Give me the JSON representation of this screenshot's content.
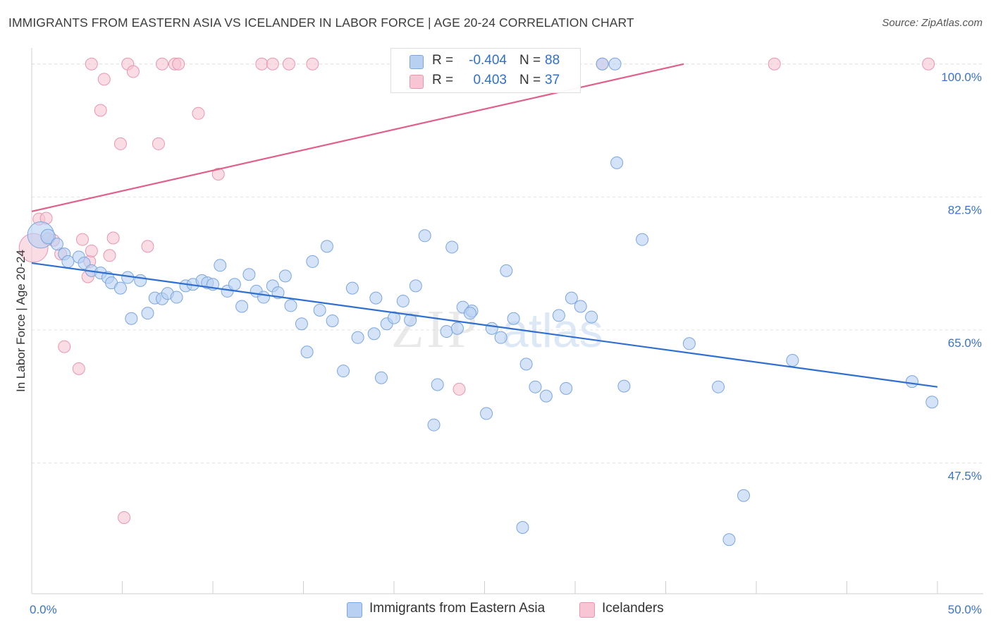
{
  "header": {
    "title": "IMMIGRANTS FROM EASTERN ASIA VS ICELANDER IN LABOR FORCE | AGE 20-24 CORRELATION CHART",
    "source_prefix": "Source: ",
    "source_site": "ZipAtlas.com"
  },
  "colors": {
    "blue_fill": "#b8d1f3",
    "blue_stroke": "#7aa6e0",
    "blue_line": "#2f6fcf",
    "pink_fill": "#f7c5d4",
    "pink_stroke": "#e896b0",
    "pink_line": "#e0608a",
    "grid": "#e2e2e2",
    "tick_label": "#3a74c9"
  },
  "legend": {
    "rows": [
      {
        "r_label": "R = ",
        "r_value": "-0.404",
        "n_label": "N = ",
        "n_value": "88"
      },
      {
        "r_label": "R = ",
        "r_value": "0.403",
        "n_label": "N = ",
        "n_value": "37"
      }
    ]
  },
  "bottom_legend": {
    "items": [
      "Immigrants from Eastern Asia",
      "Icelanders"
    ]
  },
  "watermark": {
    "zip": "ZIP",
    "atlas": "atlas"
  },
  "chart_data": {
    "type": "scatter",
    "title": "IMMIGRANTS FROM EASTERN ASIA VS ICELANDER IN LABOR FORCE | AGE 20-24 CORRELATION CHART",
    "xlabel": "",
    "ylabel": "In Labor Force | Age 20-24",
    "xlim": [
      0,
      50
    ],
    "ylim": [
      30,
      101
    ],
    "x_tick_labels": [
      "0.0%",
      "50.0%"
    ],
    "y_ticks": [
      47.5,
      65.0,
      82.5,
      100.0
    ],
    "y_tick_labels": [
      "47.5%",
      "65.0%",
      "82.5%",
      "100.0%"
    ],
    "grid": true,
    "legend_position": "top-center",
    "series": [
      {
        "name": "Immigrants from Eastern Asia",
        "r": -0.404,
        "n": 88,
        "trend": {
          "x": [
            0,
            50
          ],
          "y": [
            73.8,
            57.5
          ]
        },
        "points": [
          {
            "x": 0.5,
            "y": 77.5,
            "s": 2.2
          },
          {
            "x": 0.9,
            "y": 77.3,
            "s": 1.2
          },
          {
            "x": 1.4,
            "y": 76.3,
            "s": 1
          },
          {
            "x": 1.8,
            "y": 75.0,
            "s": 1
          },
          {
            "x": 2.0,
            "y": 74.0,
            "s": 1
          },
          {
            "x": 2.6,
            "y": 74.6,
            "s": 1
          },
          {
            "x": 2.9,
            "y": 73.8,
            "s": 1
          },
          {
            "x": 3.3,
            "y": 72.8,
            "s": 1
          },
          {
            "x": 3.8,
            "y": 72.5,
            "s": 1
          },
          {
            "x": 4.2,
            "y": 71.9,
            "s": 1
          },
          {
            "x": 4.4,
            "y": 71.2,
            "s": 1
          },
          {
            "x": 4.9,
            "y": 70.5,
            "s": 1
          },
          {
            "x": 5.3,
            "y": 71.9,
            "s": 1
          },
          {
            "x": 5.5,
            "y": 66.5,
            "s": 1
          },
          {
            "x": 6.0,
            "y": 71.5,
            "s": 1
          },
          {
            "x": 6.4,
            "y": 67.2,
            "s": 1
          },
          {
            "x": 6.8,
            "y": 69.2,
            "s": 1
          },
          {
            "x": 7.2,
            "y": 69.1,
            "s": 1
          },
          {
            "x": 7.5,
            "y": 69.8,
            "s": 1
          },
          {
            "x": 8.0,
            "y": 69.3,
            "s": 1
          },
          {
            "x": 8.5,
            "y": 70.8,
            "s": 1
          },
          {
            "x": 8.9,
            "y": 71.0,
            "s": 1
          },
          {
            "x": 9.4,
            "y": 71.5,
            "s": 1
          },
          {
            "x": 9.7,
            "y": 71.2,
            "s": 1
          },
          {
            "x": 10.0,
            "y": 71.0,
            "s": 1
          },
          {
            "x": 10.4,
            "y": 73.5,
            "s": 1
          },
          {
            "x": 10.8,
            "y": 70.1,
            "s": 1
          },
          {
            "x": 11.2,
            "y": 71.0,
            "s": 1
          },
          {
            "x": 11.6,
            "y": 68.1,
            "s": 1
          },
          {
            "x": 12.0,
            "y": 72.3,
            "s": 1
          },
          {
            "x": 12.4,
            "y": 70.1,
            "s": 1
          },
          {
            "x": 12.8,
            "y": 69.3,
            "s": 1
          },
          {
            "x": 13.3,
            "y": 70.8,
            "s": 1
          },
          {
            "x": 13.6,
            "y": 69.9,
            "s": 1
          },
          {
            "x": 14.0,
            "y": 72.1,
            "s": 1
          },
          {
            "x": 14.3,
            "y": 68.2,
            "s": 1
          },
          {
            "x": 14.9,
            "y": 65.8,
            "s": 1
          },
          {
            "x": 15.2,
            "y": 62.1,
            "s": 1
          },
          {
            "x": 15.5,
            "y": 74.0,
            "s": 1
          },
          {
            "x": 15.9,
            "y": 67.6,
            "s": 1
          },
          {
            "x": 16.3,
            "y": 76.0,
            "s": 1
          },
          {
            "x": 16.6,
            "y": 66.2,
            "s": 1
          },
          {
            "x": 17.2,
            "y": 59.6,
            "s": 1
          },
          {
            "x": 17.7,
            "y": 70.5,
            "s": 1
          },
          {
            "x": 18.0,
            "y": 64.0,
            "s": 1
          },
          {
            "x": 19.0,
            "y": 69.2,
            "s": 1
          },
          {
            "x": 19.3,
            "y": 58.7,
            "s": 1
          },
          {
            "x": 19.6,
            "y": 65.8,
            "s": 1
          },
          {
            "x": 20.0,
            "y": 66.6,
            "s": 1
          },
          {
            "x": 20.5,
            "y": 68.8,
            "s": 1
          },
          {
            "x": 20.9,
            "y": 66.3,
            "s": 1
          },
          {
            "x": 21.2,
            "y": 70.8,
            "s": 1
          },
          {
            "x": 21.7,
            "y": 77.4,
            "s": 1
          },
          {
            "x": 22.2,
            "y": 52.5,
            "s": 1
          },
          {
            "x": 22.4,
            "y": 57.8,
            "s": 1
          },
          {
            "x": 22.9,
            "y": 64.8,
            "s": 1
          },
          {
            "x": 23.2,
            "y": 75.9,
            "s": 1
          },
          {
            "x": 23.5,
            "y": 65.2,
            "s": 1
          },
          {
            "x": 23.8,
            "y": 68.0,
            "s": 1
          },
          {
            "x": 24.3,
            "y": 67.5,
            "s": 1
          },
          {
            "x": 25.1,
            "y": 54.0,
            "s": 1
          },
          {
            "x": 25.4,
            "y": 65.2,
            "s": 1
          },
          {
            "x": 25.9,
            "y": 64.0,
            "s": 1
          },
          {
            "x": 26.2,
            "y": 72.8,
            "s": 1
          },
          {
            "x": 26.6,
            "y": 66.5,
            "s": 1
          },
          {
            "x": 27.3,
            "y": 60.5,
            "s": 1
          },
          {
            "x": 27.8,
            "y": 57.5,
            "s": 1
          },
          {
            "x": 27.1,
            "y": 39.0,
            "s": 1
          },
          {
            "x": 28.4,
            "y": 56.3,
            "s": 1
          },
          {
            "x": 29.1,
            "y": 66.9,
            "s": 1
          },
          {
            "x": 29.5,
            "y": 57.3,
            "s": 1
          },
          {
            "x": 29.8,
            "y": 69.2,
            "s": 1
          },
          {
            "x": 30.3,
            "y": 68.1,
            "s": 1
          },
          {
            "x": 30.9,
            "y": 66.7,
            "s": 1
          },
          {
            "x": 31.5,
            "y": 100.0,
            "s": 1
          },
          {
            "x": 32.2,
            "y": 100.0,
            "s": 1
          },
          {
            "x": 32.3,
            "y": 87.0,
            "s": 1
          },
          {
            "x": 32.7,
            "y": 57.6,
            "s": 1
          },
          {
            "x": 33.7,
            "y": 76.9,
            "s": 1
          },
          {
            "x": 36.3,
            "y": 63.2,
            "s": 1
          },
          {
            "x": 37.9,
            "y": 57.5,
            "s": 1
          },
          {
            "x": 38.5,
            "y": 37.4,
            "s": 1
          },
          {
            "x": 39.3,
            "y": 43.2,
            "s": 1
          },
          {
            "x": 42.0,
            "y": 61.0,
            "s": 1
          },
          {
            "x": 48.6,
            "y": 58.2,
            "s": 1
          },
          {
            "x": 49.7,
            "y": 55.5,
            "s": 1
          },
          {
            "x": 24.2,
            "y": 67.2,
            "s": 1
          },
          {
            "x": 18.9,
            "y": 64.5,
            "s": 1
          }
        ]
      },
      {
        "name": "Icelanders",
        "r": 0.403,
        "n": 37,
        "trend": {
          "x": [
            0,
            36
          ],
          "y": [
            80.6,
            100.0
          ]
        },
        "points": [
          {
            "x": 0.1,
            "y": 75.8,
            "s": 2.4
          },
          {
            "x": 0.4,
            "y": 79.6,
            "s": 1
          },
          {
            "x": 0.8,
            "y": 79.7,
            "s": 1
          },
          {
            "x": 1.2,
            "y": 76.8,
            "s": 1
          },
          {
            "x": 1.6,
            "y": 75.0,
            "s": 1
          },
          {
            "x": 1.8,
            "y": 62.8,
            "s": 1
          },
          {
            "x": 2.6,
            "y": 59.9,
            "s": 1
          },
          {
            "x": 2.8,
            "y": 76.9,
            "s": 1
          },
          {
            "x": 3.1,
            "y": 72.0,
            "s": 1
          },
          {
            "x": 3.2,
            "y": 74.0,
            "s": 1
          },
          {
            "x": 3.3,
            "y": 75.4,
            "s": 1
          },
          {
            "x": 3.3,
            "y": 100.0,
            "s": 1
          },
          {
            "x": 3.8,
            "y": 93.9,
            "s": 1
          },
          {
            "x": 4.0,
            "y": 98.0,
            "s": 1
          },
          {
            "x": 4.3,
            "y": 74.8,
            "s": 1
          },
          {
            "x": 4.5,
            "y": 77.1,
            "s": 1
          },
          {
            "x": 4.9,
            "y": 89.5,
            "s": 1
          },
          {
            "x": 5.1,
            "y": 40.3,
            "s": 1
          },
          {
            "x": 5.3,
            "y": 100.0,
            "s": 1
          },
          {
            "x": 5.6,
            "y": 99.0,
            "s": 1
          },
          {
            "x": 6.4,
            "y": 76.0,
            "s": 1
          },
          {
            "x": 7.0,
            "y": 89.5,
            "s": 1
          },
          {
            "x": 7.2,
            "y": 100.0,
            "s": 1
          },
          {
            "x": 7.9,
            "y": 100.0,
            "s": 1
          },
          {
            "x": 8.1,
            "y": 100.0,
            "s": 1
          },
          {
            "x": 9.2,
            "y": 93.5,
            "s": 1
          },
          {
            "x": 10.3,
            "y": 85.5,
            "s": 1
          },
          {
            "x": 12.7,
            "y": 100.0,
            "s": 1
          },
          {
            "x": 13.3,
            "y": 100.0,
            "s": 1
          },
          {
            "x": 14.2,
            "y": 100.0,
            "s": 1
          },
          {
            "x": 15.5,
            "y": 100.0,
            "s": 1
          },
          {
            "x": 23.6,
            "y": 57.2,
            "s": 1
          },
          {
            "x": 23.8,
            "y": 100.0,
            "s": 1
          },
          {
            "x": 31.5,
            "y": 100.0,
            "s": 1
          },
          {
            "x": 41.0,
            "y": 100.0,
            "s": 1
          },
          {
            "x": 49.5,
            "y": 100.0,
            "s": 1
          },
          {
            "x": 0.9,
            "y": 77.0,
            "s": 1
          }
        ]
      }
    ]
  }
}
